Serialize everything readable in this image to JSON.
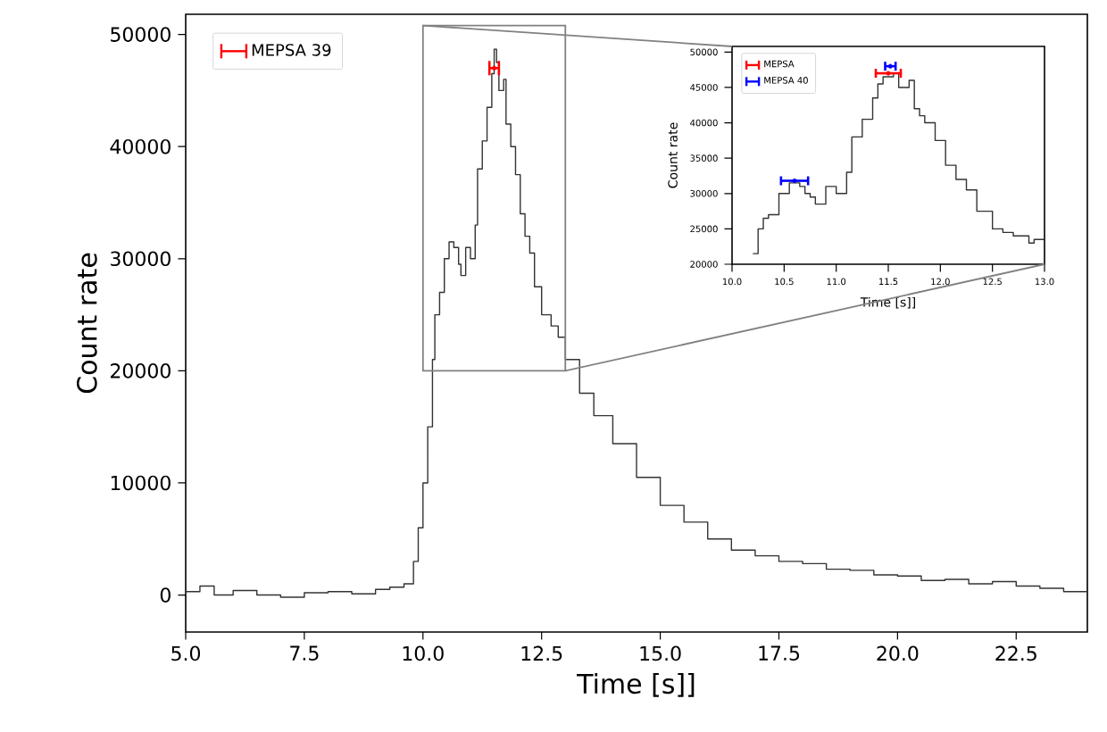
{
  "chart_data": [
    {
      "type": "step",
      "xlabel": "Time [s]]",
      "ylabel": "Count rate",
      "xlim": [
        5,
        24
      ],
      "ylim": [
        -3300,
        51800
      ],
      "xticks": [
        {
          "value": 5,
          "label": "5.0"
        },
        {
          "value": 7.5,
          "label": "7.5"
        },
        {
          "value": 10,
          "label": "10.0"
        },
        {
          "value": 12.5,
          "label": "12.5"
        },
        {
          "value": 15,
          "label": "15.0"
        },
        {
          "value": 17.5,
          "label": "17.5"
        },
        {
          "value": 20,
          "label": "20.0"
        },
        {
          "value": 22.5,
          "label": "22.5"
        }
      ],
      "yticks": [
        0,
        10000,
        20000,
        30000,
        40000,
        50000
      ],
      "legend": "top left",
      "marker": "none",
      "series": [
        {
          "color": "#333333",
          "x": [
            5.0,
            5.3,
            5.6,
            6.0,
            6.5,
            7.0,
            7.5,
            8.0,
            8.5,
            9.0,
            9.3,
            9.6,
            9.8,
            9.9,
            10.0,
            10.1,
            10.2,
            10.25,
            10.35,
            10.45,
            10.55,
            10.65,
            10.75,
            10.8,
            10.9,
            11.0,
            11.1,
            11.15,
            11.25,
            11.35,
            11.45,
            11.5,
            11.55,
            11.6,
            11.7,
            11.75,
            11.85,
            11.95,
            12.05,
            12.15,
            12.25,
            12.35,
            12.5,
            12.7,
            12.85,
            13.0,
            13.3,
            13.6,
            14.0,
            14.5,
            15.0,
            15.5,
            16.0,
            16.5,
            17.0,
            17.5,
            18.0,
            18.5,
            19.0,
            19.5,
            20.0,
            20.5,
            21.0,
            21.5,
            22.0,
            22.5,
            23.0,
            23.5,
            24.0
          ],
          "values": [
            300,
            800,
            0,
            400,
            0,
            -200,
            200,
            300,
            100,
            500,
            700,
            1000,
            3000,
            6000,
            10000,
            15000,
            21000,
            25000,
            27000,
            30000,
            31500,
            31000,
            29500,
            28500,
            31000,
            30000,
            33000,
            38000,
            40500,
            43500,
            46500,
            48700,
            47500,
            45000,
            46000,
            42000,
            40000,
            37500,
            34000,
            32000,
            30500,
            27500,
            25000,
            24000,
            23000,
            21000,
            18000,
            16000,
            13500,
            10500,
            8000,
            6500,
            5000,
            4000,
            3500,
            3000,
            2800,
            2300,
            2200,
            1800,
            1700,
            1300,
            1400,
            1000,
            1200,
            800,
            600,
            300,
            1000
          ]
        },
        {
          "name": "MEPSA 39",
          "type": "scatter",
          "marker": "circle",
          "color": "#ff0000",
          "x": [
            11.5
          ],
          "values": [
            47000
          ],
          "xerrors": [
            0.1
          ]
        }
      ]
    },
    {
      "type": "step",
      "xlabel": "Time [s]]",
      "ylabel": "Count rate",
      "xlim": [
        10,
        13
      ],
      "ylim": [
        20000,
        50800
      ],
      "xticks": [
        {
          "value": 10,
          "label": "10.0"
        },
        {
          "value": 10.5,
          "label": "10.5"
        },
        {
          "value": 11,
          "label": "11.0"
        },
        {
          "value": 11.5,
          "label": "11.5"
        },
        {
          "value": 12,
          "label": "12.0"
        },
        {
          "value": 12.5,
          "label": "12.5"
        },
        {
          "value": 13,
          "label": "13.0"
        }
      ],
      "yticks": [
        20000,
        25000,
        30000,
        35000,
        40000,
        45000,
        50000
      ],
      "legend": "top left",
      "marker": "none",
      "series": [
        {
          "color": "#333333",
          "x": [
            10.2,
            10.25,
            10.3,
            10.35,
            10.45,
            10.55,
            10.65,
            10.7,
            10.75,
            10.8,
            10.9,
            11.0,
            11.1,
            11.15,
            11.25,
            11.35,
            11.4,
            11.45,
            11.55,
            11.6,
            11.7,
            11.75,
            11.8,
            11.85,
            11.95,
            12.05,
            12.15,
            12.25,
            12.35,
            12.5,
            12.6,
            12.7,
            12.85,
            12.9,
            13.0
          ],
          "values": [
            21500,
            25000,
            26500,
            27000,
            30000,
            31500,
            31000,
            30000,
            29500,
            28500,
            31000,
            30000,
            33000,
            38000,
            40500,
            43500,
            45500,
            46500,
            47000,
            45000,
            46000,
            42000,
            41000,
            40000,
            37500,
            34000,
            32000,
            30500,
            27500,
            25000,
            24500,
            24000,
            23000,
            23500,
            21000
          ]
        },
        {
          "name": "MEPSA",
          "type": "scatter",
          "marker": "circle",
          "color": "#ff0000",
          "x": [
            11.5
          ],
          "values": [
            47000
          ],
          "xerrors": [
            0.12
          ]
        },
        {
          "name": "MEPSA 40",
          "type": "scatter",
          "marker": "circle",
          "color": "#0000ff",
          "x": [
            11.52,
            10.6
          ],
          "values": [
            48000,
            31800
          ],
          "xerrors": [
            0.05,
            0.13
          ]
        }
      ]
    }
  ]
}
